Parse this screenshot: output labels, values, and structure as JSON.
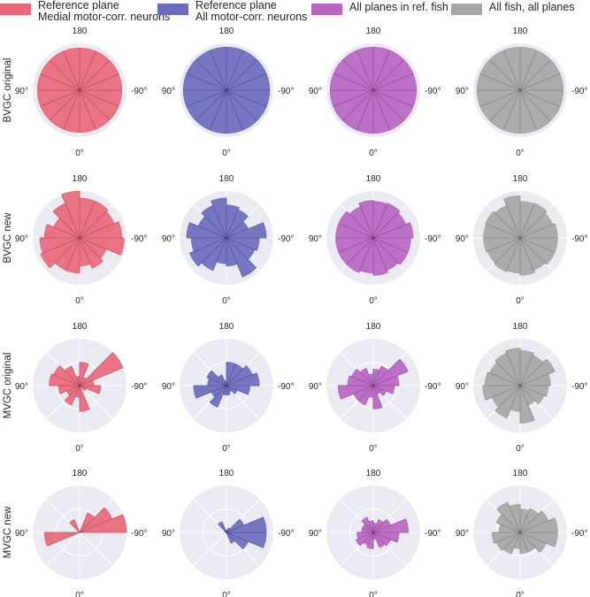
{
  "legend": [
    {
      "label": "Reference plane\nMedial motor-corr. neurons",
      "color": "#e8677a"
    },
    {
      "label": "Reference plane\nAll motor-corr. neurons",
      "color": "#6b6bbf"
    },
    {
      "label": "All planes in ref. fish",
      "color": "#b866c2"
    },
    {
      "label": "All fish, all planes",
      "color": "#a6a6a6"
    }
  ],
  "angle_labels": {
    "top": "180",
    "left": "90°",
    "right": "-90°",
    "bottom": "0°"
  },
  "colors": {
    "background": "#eaeaf2",
    "grid": "#ffffff"
  },
  "chart_data": {
    "type": "polar-histogram",
    "bins": 16,
    "bin_order": "counter-clockwise from 0° at bottom; bin k spans [k*22.5°, (k+1)*22.5°]",
    "rows": [
      "BVGC original",
      "BVGC new",
      "MVGC original",
      "MVGC new"
    ],
    "columns": [
      "Reference plane Medial motor-corr. neurons",
      "Reference plane All motor-corr. neurons",
      "All planes in ref. fish",
      "All fish, all planes"
    ],
    "r_max": 1.0,
    "grid": true,
    "panels": [
      [
        [
          0.9,
          0.9,
          0.9,
          0.9,
          0.9,
          0.9,
          0.9,
          0.9,
          0.9,
          0.9,
          0.9,
          0.9,
          0.9,
          0.9,
          0.9,
          0.9
        ],
        [
          0.92,
          0.92,
          0.92,
          0.92,
          0.92,
          0.92,
          0.92,
          0.92,
          0.92,
          0.92,
          0.92,
          0.92,
          0.92,
          0.92,
          0.92,
          0.92
        ],
        [
          0.92,
          0.92,
          0.92,
          0.92,
          0.92,
          0.92,
          0.92,
          0.92,
          0.92,
          0.92,
          0.92,
          0.92,
          0.92,
          0.92,
          0.92,
          0.92
        ],
        [
          0.92,
          0.92,
          0.92,
          0.92,
          0.92,
          0.92,
          0.92,
          0.92,
          0.92,
          0.92,
          0.92,
          0.92,
          0.92,
          0.92,
          0.92,
          0.92
        ]
      ],
      [
        [
          0.6,
          0.7,
          0.62,
          0.95,
          0.9,
          0.8,
          0.85,
          0.85,
          1.0,
          0.8,
          0.6,
          0.75,
          0.85,
          0.9,
          0.75,
          0.75
        ],
        [
          0.6,
          0.9,
          0.65,
          0.7,
          0.85,
          0.5,
          0.65,
          0.7,
          0.85,
          0.75,
          0.65,
          0.85,
          0.75,
          0.85,
          0.75,
          0.55
        ],
        [
          0.8,
          0.75,
          0.8,
          0.8,
          0.85,
          0.75,
          0.8,
          0.78,
          0.8,
          0.72,
          0.8,
          0.8,
          0.8,
          0.8,
          0.8,
          0.75
        ],
        [
          0.8,
          0.75,
          0.8,
          0.8,
          0.8,
          0.75,
          0.8,
          0.78,
          0.9,
          0.75,
          0.8,
          0.78,
          0.78,
          0.75,
          0.78,
          0.75
        ]
      ],
      [
        [
          0.55,
          0.0,
          0.15,
          0.45,
          0.3,
          1.0,
          0.2,
          0.5,
          0.2,
          0.45,
          0.6,
          0.65,
          0.45,
          0.3,
          0.45,
          0.25
        ],
        [
          0.2,
          0.15,
          0.25,
          0.5,
          0.7,
          0.6,
          0.5,
          0.5,
          0.1,
          0.25,
          0.45,
          0.4,
          0.7,
          0.35,
          0.5,
          0.2
        ],
        [
          0.5,
          0.2,
          0.3,
          0.45,
          0.55,
          0.8,
          0.45,
          0.35,
          0.25,
          0.4,
          0.5,
          0.55,
          0.75,
          0.45,
          0.45,
          0.25
        ],
        [
          0.8,
          0.45,
          0.55,
          0.6,
          0.65,
          0.8,
          0.7,
          0.75,
          0.8,
          0.75,
          0.7,
          0.75,
          0.8,
          0.65,
          0.75,
          0.55
        ]
      ],
      [
        [
          0.0,
          0.0,
          0.0,
          0.0,
          1.0,
          0.75,
          0.45,
          0.0,
          0.0,
          0.3,
          0.0,
          0.0,
          0.75,
          0.0,
          0.0,
          0.0
        ],
        [
          0.0,
          0.25,
          0.5,
          0.85,
          0.85,
          0.4,
          0.1,
          0.0,
          0.05,
          0.25,
          0.05,
          0.0,
          0.0,
          0.0,
          0.0,
          0.0
        ],
        [
          0.15,
          0.35,
          0.4,
          0.55,
          0.75,
          0.4,
          0.3,
          0.2,
          0.25,
          0.35,
          0.25,
          0.25,
          0.35,
          0.4,
          0.3,
          0.35
        ],
        [
          0.45,
          0.45,
          0.6,
          0.8,
          0.8,
          0.65,
          0.55,
          0.5,
          0.6,
          0.7,
          0.55,
          0.45,
          0.6,
          0.55,
          0.5,
          0.35
        ]
      ]
    ]
  }
}
